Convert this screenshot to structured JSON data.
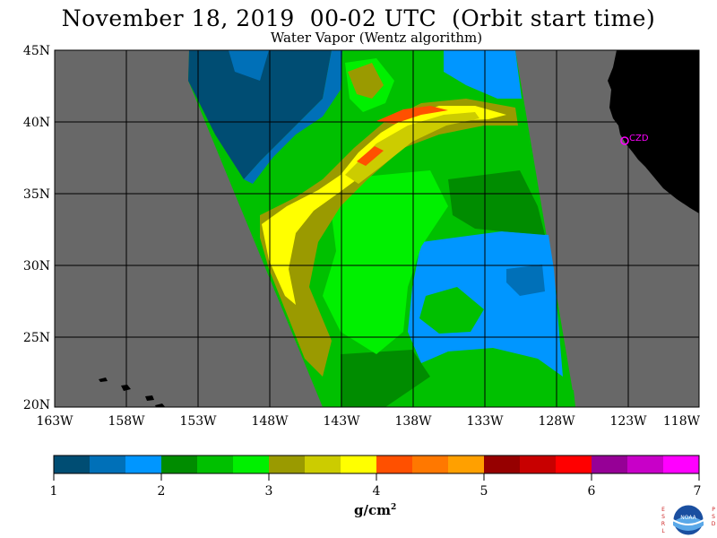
{
  "header": {
    "title": "November 18, 2019  00-02 UTC  (Orbit start time)",
    "subtitle": "Water Vapor (Wentz algorithm)"
  },
  "map": {
    "latitude_labels": [
      "45N",
      "40N",
      "35N",
      "30N",
      "25N",
      "20N"
    ],
    "longitude_labels": [
      "163W",
      "158W",
      "153W",
      "148W",
      "143W",
      "138W",
      "133W",
      "128W",
      "123W",
      "118W"
    ],
    "station_label": "CZD",
    "colors": {
      "no_data": "#686868",
      "land": "#000000",
      "grid": "#000000",
      "station": "#ff00ff"
    }
  },
  "colorbar": {
    "colors": [
      "#004d73",
      "#0070b8",
      "#0096ff",
      "#008c00",
      "#00c000",
      "#00f000",
      "#9a9a00",
      "#cccc00",
      "#ffff00",
      "#ff5000",
      "#ff7800",
      "#ffa000",
      "#960000",
      "#c80000",
      "#ff0000",
      "#960096",
      "#c800c8",
      "#ff00ff"
    ],
    "tick_labels": [
      "1",
      "2",
      "3",
      "4",
      "5",
      "6",
      "7"
    ],
    "unit": "g/cm",
    "unit_exponent": "2"
  },
  "logo": {
    "left_letters": "ESRL",
    "right_letters": "PSD",
    "center_text": "NOAA"
  }
}
